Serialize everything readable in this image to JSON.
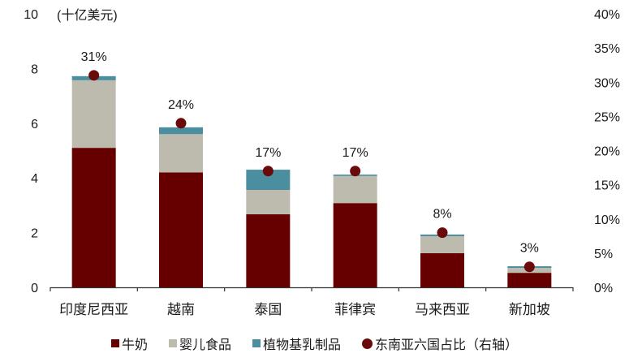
{
  "chart_data": {
    "type": "bar",
    "stacked": true,
    "title": "",
    "unit_label": "(十亿美元)",
    "xlabel": "",
    "ylabel": "(十亿美元)",
    "ylim": [
      0,
      10
    ],
    "yticks": [
      0,
      2,
      4,
      6,
      8,
      10
    ],
    "y2lim": [
      0,
      40
    ],
    "y2ticks": [
      "0%",
      "5%",
      "10%",
      "15%",
      "20%",
      "25%",
      "30%",
      "35%",
      "40%"
    ],
    "grid": false,
    "legend_position": "bottom",
    "categories": [
      "印度尼西亚",
      "越南",
      "泰国",
      "菲律宾",
      "马来西亚",
      "新加坡"
    ],
    "series": [
      {
        "name": "牛奶",
        "type": "bar",
        "color": "#660000",
        "values": [
          5.1,
          4.2,
          2.67,
          3.08,
          1.25,
          0.53
        ]
      },
      {
        "name": "婴儿食品",
        "type": "bar",
        "color": "#bcbbad",
        "values": [
          2.47,
          1.4,
          0.89,
          0.99,
          0.62,
          0.18
        ]
      },
      {
        "name": "植物基乳制品",
        "type": "bar",
        "color": "#4a8ea0",
        "values": [
          0.15,
          0.25,
          0.74,
          0.05,
          0.06,
          0.06
        ]
      },
      {
        "name": "东南亚六国占比（右轴）",
        "type": "scatter",
        "axis": "right",
        "color": "#6b0a0a",
        "values": [
          31,
          24,
          17,
          17,
          8,
          3
        ],
        "labels": [
          "31%",
          "24%",
          "17%",
          "17%",
          "8%",
          "3%"
        ]
      }
    ]
  },
  "legend": {
    "items": [
      {
        "label": "牛奶",
        "color": "#660000",
        "shape": "square"
      },
      {
        "label": "婴儿食品",
        "color": "#bcbbad",
        "shape": "square"
      },
      {
        "label": "植物基乳制品",
        "color": "#4a8ea0",
        "shape": "square"
      },
      {
        "label": "东南亚六国占比（右轴）",
        "color": "#6b0a0a",
        "shape": "circle"
      }
    ]
  }
}
